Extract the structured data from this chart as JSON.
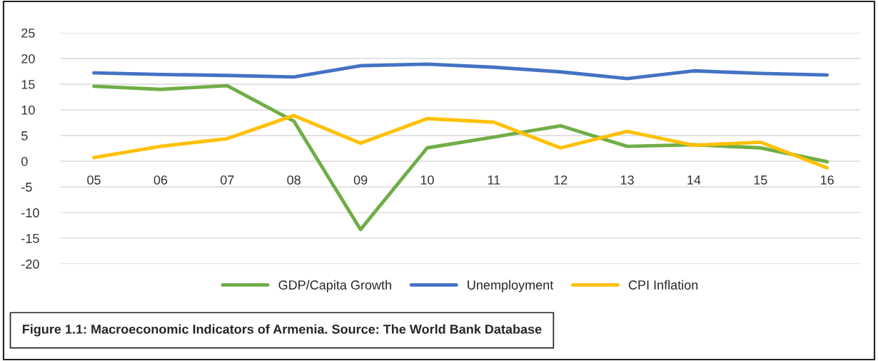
{
  "chart_data": {
    "type": "line",
    "categories": [
      "05",
      "06",
      "07",
      "08",
      "09",
      "10",
      "11",
      "12",
      "13",
      "14",
      "15",
      "16"
    ],
    "series": [
      {
        "name": "GDP/Capita Growth",
        "color": "#70ad47",
        "values": [
          14.6,
          14.0,
          14.7,
          7.8,
          -13.3,
          2.6,
          4.7,
          6.9,
          2.9,
          3.2,
          2.6,
          -0.1
        ]
      },
      {
        "name": "Unemployment",
        "color": "#4472c4",
        "values": [
          17.2,
          16.9,
          16.7,
          16.4,
          18.6,
          18.9,
          18.3,
          17.4,
          16.1,
          17.6,
          17.1,
          16.8
        ]
      },
      {
        "name": "CPI Inflation",
        "color": "#ffc000",
        "values": [
          0.7,
          2.9,
          4.4,
          8.9,
          3.5,
          8.3,
          7.6,
          2.6,
          5.8,
          3.1,
          3.7,
          -1.3
        ]
      }
    ],
    "ylim": [
      -20,
      25
    ],
    "yticks": [
      -20,
      -15,
      -10,
      -5,
      0,
      5,
      10,
      15,
      20,
      25
    ],
    "grid": "y",
    "legend": "bottom",
    "marker": "none",
    "line_style": "solid",
    "annotations": [
      "Figure 1.1: Macroeconomic Indicators of Armenia. Source: The World Bank Database"
    ]
  }
}
